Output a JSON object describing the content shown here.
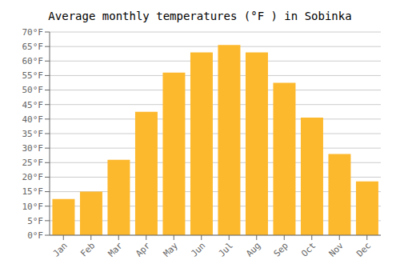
{
  "chart_data": {
    "type": "bar",
    "title": "Average monthly temperatures (°F ) in Sobinka",
    "categories": [
      "Jan",
      "Feb",
      "Mar",
      "Apr",
      "May",
      "Jun",
      "Jul",
      "Aug",
      "Sep",
      "Oct",
      "Nov",
      "Dec"
    ],
    "values": [
      12.5,
      15.0,
      26.0,
      42.5,
      56.0,
      63.0,
      65.5,
      63.0,
      52.5,
      40.5,
      28.0,
      18.5
    ],
    "color": "#FDB92E",
    "ylim": [
      0,
      70
    ],
    "yticks": [
      {
        "value": 0,
        "label": "0°F"
      },
      {
        "value": 5,
        "label": "5°F"
      },
      {
        "value": 10,
        "label": "10°F"
      },
      {
        "value": 15,
        "label": "15°F"
      },
      {
        "value": 20,
        "label": "20°F"
      },
      {
        "value": 25,
        "label": "25°F"
      },
      {
        "value": 30,
        "label": "30°F"
      },
      {
        "value": 35,
        "label": "35°F"
      },
      {
        "value": 40,
        "label": "40°F"
      },
      {
        "value": 45,
        "label": "45°F"
      },
      {
        "value": 50,
        "label": "50°F"
      },
      {
        "value": 55,
        "label": "55°F"
      },
      {
        "value": 60,
        "label": "60°F"
      },
      {
        "value": 65,
        "label": "65°F"
      },
      {
        "value": 70,
        "label": "70°F"
      }
    ],
    "grid": true
  }
}
